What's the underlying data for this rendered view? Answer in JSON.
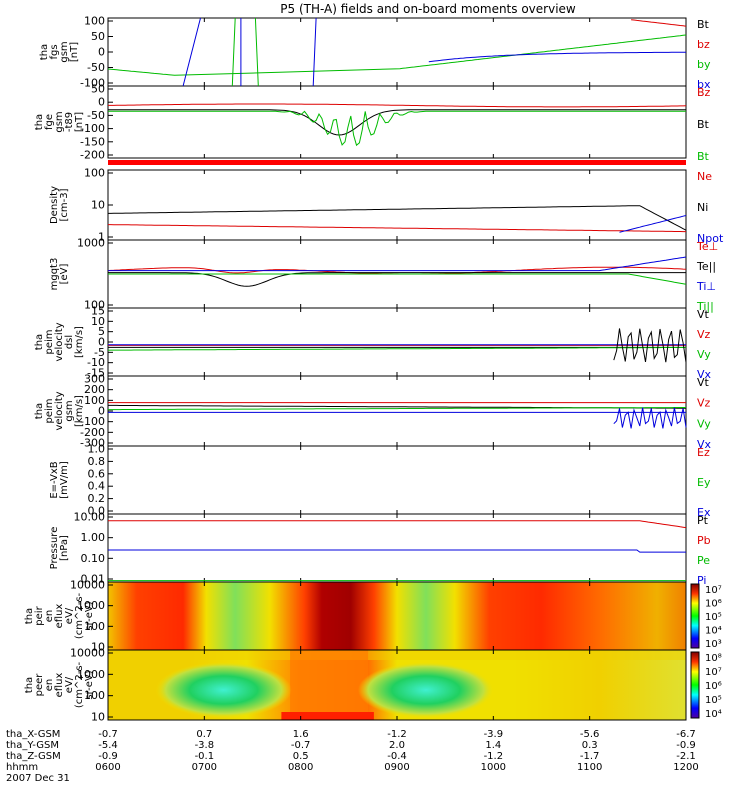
{
  "chart_data": {
    "type": "line",
    "title": "P5 (TH-A) fields and on-board moments overview",
    "time_ticks": [
      "0600",
      "0700",
      "0800",
      "0900",
      "1000",
      "1100",
      "1200"
    ],
    "ephemeris": [
      {
        "label": "tha_X-GSM",
        "values": [
          "-0.7",
          "0.7",
          "1.6",
          "-1.2",
          "-3.9",
          "-5.6",
          "-6.7"
        ]
      },
      {
        "label": "tha_Y-GSM",
        "values": [
          "-5.4",
          "-3.8",
          "-0.7",
          "2.0",
          "1.4",
          "0.3",
          "-0.9"
        ]
      },
      {
        "label": "tha_Z-GSM",
        "values": [
          "-0.9",
          "-0.1",
          "0.5",
          "-0.4",
          "-1.2",
          "-1.7",
          "-2.1"
        ]
      },
      {
        "label": "hhmm",
        "values": []
      }
    ],
    "date_label": "2007 Dec 31",
    "panels": [
      {
        "ylabel": [
          "tha",
          "fgs",
          "gsm",
          "[nT]"
        ],
        "ticks": [
          "100",
          "50",
          "0",
          "-50",
          "-100"
        ],
        "legend": [
          {
            "name": "Bt",
            "color": "#000000"
          },
          {
            "name": "bz",
            "color": "#dd0000"
          },
          {
            "name": "by",
            "color": "#00bb00"
          },
          {
            "name": "bx",
            "color": "#0000dd"
          }
        ]
      },
      {
        "ylabel": [
          "tha",
          "fge",
          "gsm",
          "-t89",
          "[nT]"
        ],
        "ticks": [
          "50",
          "0",
          "-50",
          "-100",
          "-150",
          "-200"
        ],
        "legend": [
          {
            "name": "Bz",
            "color": "#dd0000"
          },
          {
            "name": "Bt",
            "color": "#000000"
          },
          {
            "name": "Bt",
            "color": "#00bb00"
          }
        ]
      },
      {
        "ylabel": [
          "Density",
          "[cm-3]"
        ],
        "ticks": [
          "100",
          "10",
          "1"
        ],
        "legend": [
          {
            "name": "Ne",
            "color": "#dd0000"
          },
          {
            "name": "Ni",
            "color": "#000000"
          },
          {
            "name": "Npot",
            "color": "#0000dd"
          }
        ]
      },
      {
        "ylabel": [
          "mgqt3",
          "[eV]"
        ],
        "ticks": [
          "1000",
          "100"
        ],
        "legend": [
          {
            "name": "Te⊥",
            "color": "#dd0000"
          },
          {
            "name": "Te||",
            "color": "#000000"
          },
          {
            "name": "Ti⊥",
            "color": "#0000dd"
          },
          {
            "name": "Ti||",
            "color": "#00bb00"
          }
        ]
      },
      {
        "ylabel": [
          "tha",
          "peim",
          "velocity",
          "dsl",
          "[km/s]"
        ],
        "ticks": [
          "15",
          "10",
          "5",
          "0",
          "-5",
          "-10",
          "-15"
        ],
        "legend": [
          {
            "name": "Vt",
            "color": "#000000"
          },
          {
            "name": "Vz",
            "color": "#dd0000"
          },
          {
            "name": "Vy",
            "color": "#00bb00"
          },
          {
            "name": "Vx",
            "color": "#0000dd"
          }
        ]
      },
      {
        "ylabel": [
          "tha",
          "peim",
          "velocity",
          "gsm",
          "[km/s]"
        ],
        "ticks": [
          "300",
          "200",
          "100",
          "0",
          "-100",
          "-200",
          "-300"
        ],
        "legend": [
          {
            "name": "Vt",
            "color": "#000000"
          },
          {
            "name": "Vz",
            "color": "#dd0000"
          },
          {
            "name": "Vy",
            "color": "#00bb00"
          },
          {
            "name": "Vx",
            "color": "#0000dd"
          }
        ]
      },
      {
        "ylabel": [
          "E=-VxB",
          "[mV/m]"
        ],
        "ticks": [
          "1.0",
          "0.8",
          "0.6",
          "0.4",
          "0.2",
          "0.0"
        ],
        "legend": [
          {
            "name": "Ez",
            "color": "#dd0000"
          },
          {
            "name": "Ey",
            "color": "#00bb00"
          },
          {
            "name": "Ex",
            "color": "#0000dd"
          }
        ]
      },
      {
        "ylabel": [
          "Pressure",
          "[nPa]"
        ],
        "ticks": [
          "10.00",
          "1.00",
          "0.10",
          "0.01"
        ],
        "legend": [
          {
            "name": "Pt",
            "color": "#000000"
          },
          {
            "name": "Pb",
            "color": "#dd0000"
          },
          {
            "name": "Pe",
            "color": "#00bb00"
          },
          {
            "name": "Pi",
            "color": "#0000dd"
          }
        ]
      },
      {
        "ylabel": [
          "tha",
          "peir",
          "en",
          "eflux",
          "eV/",
          "(cm^2-s-",
          "sr-eV)"
        ],
        "ticks": [
          "10000",
          "1000",
          "100",
          "10"
        ],
        "colorbar": [
          "10⁷",
          "10⁶",
          "10⁵",
          "10⁴",
          "10³"
        ]
      },
      {
        "ylabel": [
          "tha",
          "peer",
          "en",
          "eflux",
          "eV/",
          "(cm^2-s-",
          "sr-eV)"
        ],
        "ticks": [
          "10000",
          "1000",
          "100",
          "10"
        ],
        "colorbar": [
          "10⁸",
          "10⁷",
          "10⁶",
          "10⁵",
          "10⁴"
        ]
      }
    ]
  }
}
